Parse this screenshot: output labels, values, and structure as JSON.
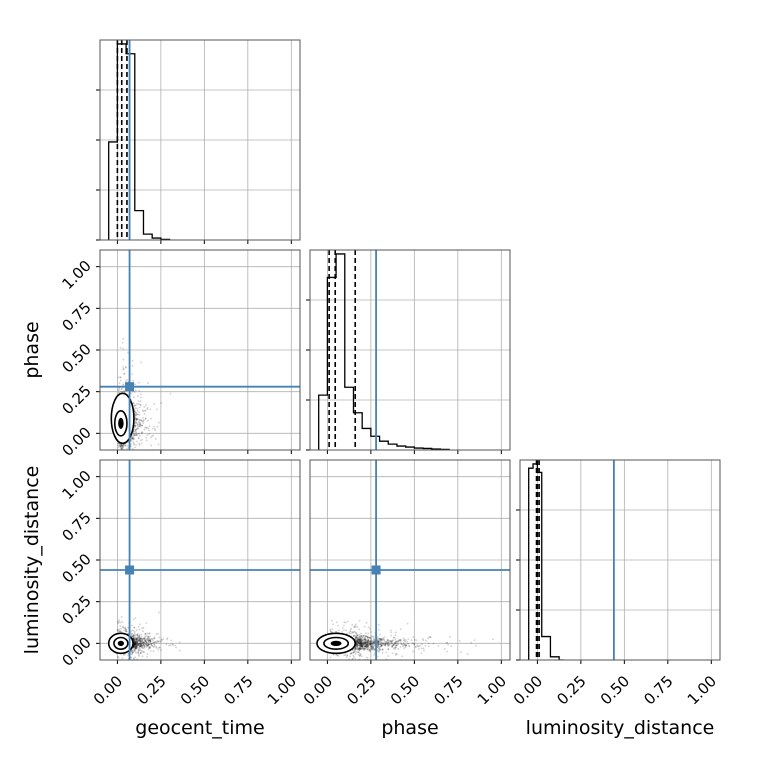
{
  "chart_data": {
    "type": "corner",
    "parameters": [
      "geocent_time",
      "phase",
      "luminosity_distance"
    ],
    "axis_labels": {
      "x": [
        "geocent_time",
        "phase",
        "luminosity_distance"
      ],
      "y": [
        "phase",
        "luminosity_distance"
      ]
    },
    "xlim": [
      -0.1,
      1.05
    ],
    "ylim": [
      -0.1,
      1.1
    ],
    "ticks": [
      0.0,
      0.25,
      0.5,
      0.75,
      1.0
    ],
    "tick_labels": [
      "0.00",
      "0.25",
      "0.50",
      "0.75",
      "1.00"
    ],
    "grid": true,
    "truths": {
      "geocent_time": 0.07,
      "phase": 0.28,
      "luminosity_distance": 0.44
    },
    "truth_color": "#4682b4",
    "line_color": "#000000",
    "quantiles": {
      "geocent_time": [
        0.0,
        0.025,
        0.055
      ],
      "phase": [
        0.01,
        0.045,
        0.16
      ],
      "luminosity_distance": [
        -0.005,
        0.0,
        0.01
      ]
    },
    "histograms": {
      "geocent_time": {
        "bins": [
          -0.05,
          0.0,
          0.05,
          0.1,
          0.15,
          0.2,
          0.25,
          0.3
        ],
        "counts": [
          0.5,
          1.0,
          0.95,
          0.15,
          0.03,
          0.01,
          0.003
        ]
      },
      "phase": {
        "bins": [
          -0.05,
          0.0,
          0.05,
          0.1,
          0.15,
          0.2,
          0.25,
          0.3,
          0.35,
          0.4,
          0.45,
          0.5,
          0.55,
          0.6,
          0.65,
          0.7
        ],
        "counts": [
          0.28,
          0.88,
          1.0,
          0.32,
          0.19,
          0.11,
          0.07,
          0.045,
          0.03,
          0.02,
          0.015,
          0.01,
          0.008,
          0.005,
          0.003
        ]
      },
      "luminosity_distance": {
        "bins": [
          -0.05,
          -0.025,
          0.0,
          0.025,
          0.05,
          0.075,
          0.1,
          0.125,
          0.15
        ],
        "counts": [
          0.9,
          0.92,
          0.88,
          0.11,
          0.11,
          0.015,
          0.015,
          0.0
        ]
      }
    },
    "pairs": [
      {
        "x": "geocent_time",
        "y": "phase",
        "spread": {
          "x_center": 0.02,
          "x_scale": 0.05,
          "y_center": 0.06,
          "y_scale": 0.12,
          "points": 1400
        },
        "contours": [
          {
            "cx": 0.02,
            "cy": 0.06,
            "rx": 0.035,
            "ry": 0.075
          },
          {
            "cx": 0.03,
            "cy": 0.09,
            "rx": 0.065,
            "ry": 0.15
          }
        ]
      },
      {
        "x": "geocent_time",
        "y": "luminosity_distance",
        "spread": {
          "x_center": 0.02,
          "x_scale": 0.08,
          "y_center": 0.0,
          "y_scale": 0.035,
          "points": 1400
        },
        "contours": [
          {
            "cx": 0.02,
            "cy": 0.0,
            "rx": 0.04,
            "ry": 0.035
          },
          {
            "cx": 0.02,
            "cy": 0.0,
            "rx": 0.07,
            "ry": 0.06
          }
        ]
      },
      {
        "x": "phase",
        "y": "luminosity_distance",
        "spread": {
          "x_center": 0.06,
          "x_scale": 0.16,
          "y_center": 0.0,
          "y_scale": 0.035,
          "points": 1800
        },
        "contours": [
          {
            "cx": 0.05,
            "cy": 0.0,
            "rx": 0.07,
            "ry": 0.035
          },
          {
            "cx": 0.05,
            "cy": 0.0,
            "rx": 0.11,
            "ry": 0.06
          }
        ]
      }
    ]
  }
}
